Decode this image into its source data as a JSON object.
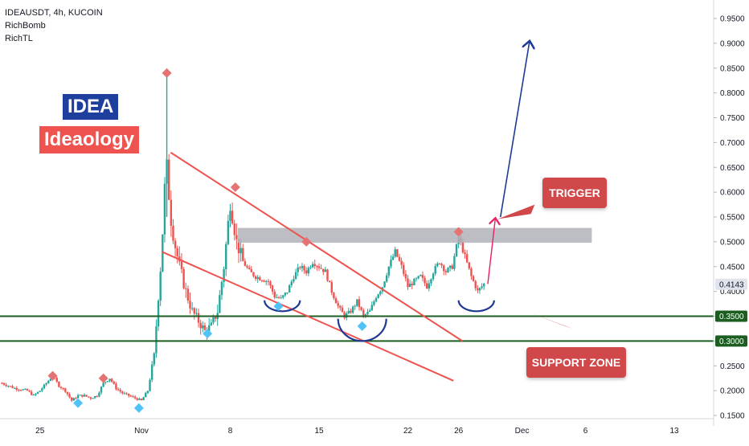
{
  "legend": {
    "symbol_line": "IDEAUSDT, 4h, KUCOIN",
    "indicator_1": "RichBomb",
    "indicator_2": "RichTL"
  },
  "brand": {
    "ticker": "IDEA",
    "ticker_bg": "#1e3f9e",
    "name": "Ideaology",
    "name_bg": "#ef5350"
  },
  "annotations": {
    "trigger_label": "TRIGGER",
    "support_label": "SUPPORT ZONE",
    "callout_bg": "#d0484a",
    "trendline_color": "#ef5350",
    "support_color": "#1b5e20",
    "resistance_zone_color": "#b0b3b8",
    "arc_color": "#1f3a93",
    "arrow_up_color": "#1f3a93",
    "arrow_trigger_color": "#e91e63"
  },
  "colors": {
    "up": "#26a69a",
    "down": "#ef5350",
    "sell_marker": "#e57373",
    "buy_marker": "#4fc3f7",
    "last_price_bg": "#e0e3eb"
  },
  "chart_data": {
    "type": "candlestick",
    "symbol": "IDEAUSDT",
    "timeframe": "4h",
    "exchange": "KUCOIN",
    "y_scale": "linear",
    "ylim": [
      0.14,
      0.98
    ],
    "grid": false,
    "price_axis_ticks": [
      "0.9500",
      "0.9000",
      "0.8500",
      "0.8000",
      "0.7500",
      "0.7000",
      "0.6500",
      "0.6000",
      "0.5500",
      "0.5000",
      "0.4500",
      "0.4000",
      "0.3500",
      "0.3000",
      "0.2500",
      "0.2000",
      "0.1500"
    ],
    "time_axis_ticks": [
      {
        "label": "25",
        "day": -7
      },
      {
        "label": "Nov",
        "day": 1
      },
      {
        "label": "8",
        "day": 8
      },
      {
        "label": "15",
        "day": 15
      },
      {
        "label": "22",
        "day": 22
      },
      {
        "label": "26",
        "day": 26
      },
      {
        "label": "Dec",
        "day": 31
      },
      {
        "label": "6",
        "day": 36
      },
      {
        "label": "13",
        "day": 43
      }
    ],
    "last_price": "0.4143",
    "support_levels": [
      "0.3500",
      "0.3000"
    ],
    "resistance_zone": [
      0.498,
      0.528
    ],
    "price_path": [
      [
        -10,
        0.215
      ],
      [
        -9,
        0.205
      ],
      [
        -8,
        0.2
      ],
      [
        -7.5,
        0.19
      ],
      [
        -7,
        0.2
      ],
      [
        -6.5,
        0.215
      ],
      [
        -6,
        0.23
      ],
      [
        -5.5,
        0.21
      ],
      [
        -5,
        0.2
      ],
      [
        -4.5,
        0.18
      ],
      [
        -4,
        0.19
      ],
      [
        -3.5,
        0.19
      ],
      [
        -3,
        0.185
      ],
      [
        -2.5,
        0.19
      ],
      [
        -2,
        0.215
      ],
      [
        -1.5,
        0.225
      ],
      [
        -1,
        0.205
      ],
      [
        -0.5,
        0.195
      ],
      [
        0,
        0.19
      ],
      [
        0.5,
        0.185
      ],
      [
        1,
        0.18
      ],
      [
        1.5,
        0.2
      ],
      [
        2,
        0.27
      ],
      [
        2.3,
        0.38
      ],
      [
        2.6,
        0.48
      ],
      [
        2.8,
        0.6
      ],
      [
        3,
        0.65
      ],
      [
        3.3,
        0.55
      ],
      [
        3.6,
        0.5
      ],
      [
        4,
        0.45
      ],
      [
        4.5,
        0.4
      ],
      [
        5,
        0.36
      ],
      [
        5.5,
        0.34
      ],
      [
        6,
        0.32
      ],
      [
        6.5,
        0.33
      ],
      [
        7,
        0.36
      ],
      [
        7.5,
        0.45
      ],
      [
        8,
        0.58
      ],
      [
        8.5,
        0.5
      ],
      [
        9,
        0.46
      ],
      [
        9.5,
        0.44
      ],
      [
        10,
        0.43
      ],
      [
        11,
        0.42
      ],
      [
        11.5,
        0.39
      ],
      [
        12,
        0.385
      ],
      [
        12.5,
        0.4
      ],
      [
        13,
        0.43
      ],
      [
        13.5,
        0.45
      ],
      [
        14,
        0.44
      ],
      [
        14.5,
        0.46
      ],
      [
        15,
        0.45
      ],
      [
        15.5,
        0.44
      ],
      [
        16,
        0.4
      ],
      [
        16.5,
        0.37
      ],
      [
        17,
        0.35
      ],
      [
        17.5,
        0.36
      ],
      [
        18,
        0.38
      ],
      [
        18.5,
        0.35
      ],
      [
        19,
        0.36
      ],
      [
        19.5,
        0.39
      ],
      [
        20,
        0.41
      ],
      [
        20.5,
        0.45
      ],
      [
        21,
        0.48
      ],
      [
        21.5,
        0.45
      ],
      [
        22,
        0.41
      ],
      [
        22.5,
        0.42
      ],
      [
        23,
        0.43
      ],
      [
        23.5,
        0.41
      ],
      [
        24,
        0.44
      ],
      [
        24.5,
        0.46
      ],
      [
        25,
        0.44
      ],
      [
        25.5,
        0.45
      ],
      [
        26,
        0.51
      ],
      [
        26.5,
        0.47
      ],
      [
        27,
        0.43
      ],
      [
        27.5,
        0.4
      ],
      [
        28,
        0.415
      ]
    ],
    "sell_signals": [
      [
        -6,
        0.23
      ],
      [
        -2,
        0.225
      ],
      [
        3,
        0.84
      ],
      [
        8.4,
        0.61
      ],
      [
        14,
        0.5
      ],
      [
        26,
        0.52
      ]
    ],
    "buy_signals": [
      [
        -4,
        0.175
      ],
      [
        0.8,
        0.165
      ],
      [
        6.2,
        0.315
      ],
      [
        18.4,
        0.33
      ],
      [
        11.8,
        0.37
      ]
    ]
  }
}
